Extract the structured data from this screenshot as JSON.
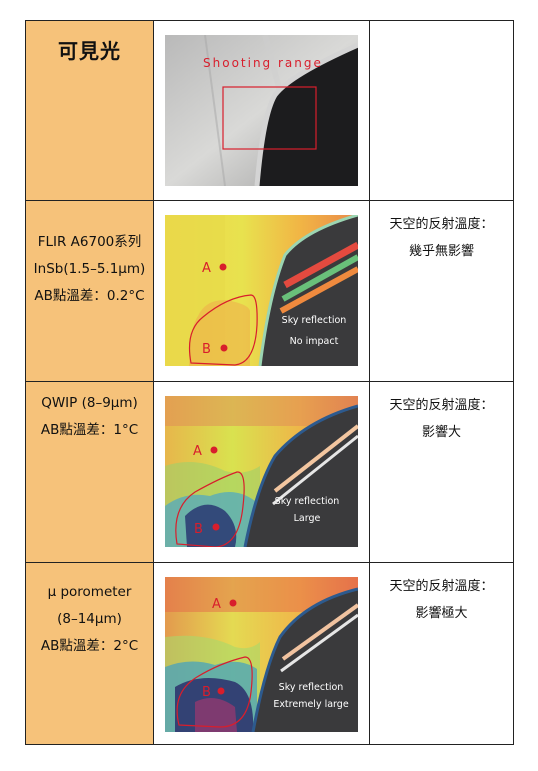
{
  "rows": [
    {
      "label": "可見光",
      "overlay": "Shooting range",
      "note": []
    },
    {
      "spec": [
        "FLIR A6700系列",
        "InSb(1.5–5.1μm)",
        "AB點溫差：0.2°C"
      ],
      "point_a": "A",
      "point_b": "B",
      "overlay_lines": [
        "Sky reflection",
        "No impact"
      ],
      "note": [
        "天空的反射溫度：",
        "幾乎無影響"
      ]
    },
    {
      "spec": [
        "QWIP (8–9μm)",
        "AB點溫差：1°C"
      ],
      "point_a": "A",
      "point_b": "B",
      "overlay_lines": [
        "Sky reflection",
        "Large"
      ],
      "note": [
        "天空的反射溫度：",
        "影響大"
      ]
    },
    {
      "spec": [
        "μ porometer",
        "(8–14μm)",
        "AB點溫差：2°C"
      ],
      "point_a": "A",
      "point_b": "B",
      "overlay_lines": [
        "Sky reflection",
        "Extremely large"
      ],
      "note": [
        "天空的反射溫度：",
        "影響極大"
      ]
    }
  ],
  "colors": {
    "label_cell": "#f6c27a",
    "marker_red": "#d81e2c",
    "dark_panel": "#3a3a3c"
  }
}
